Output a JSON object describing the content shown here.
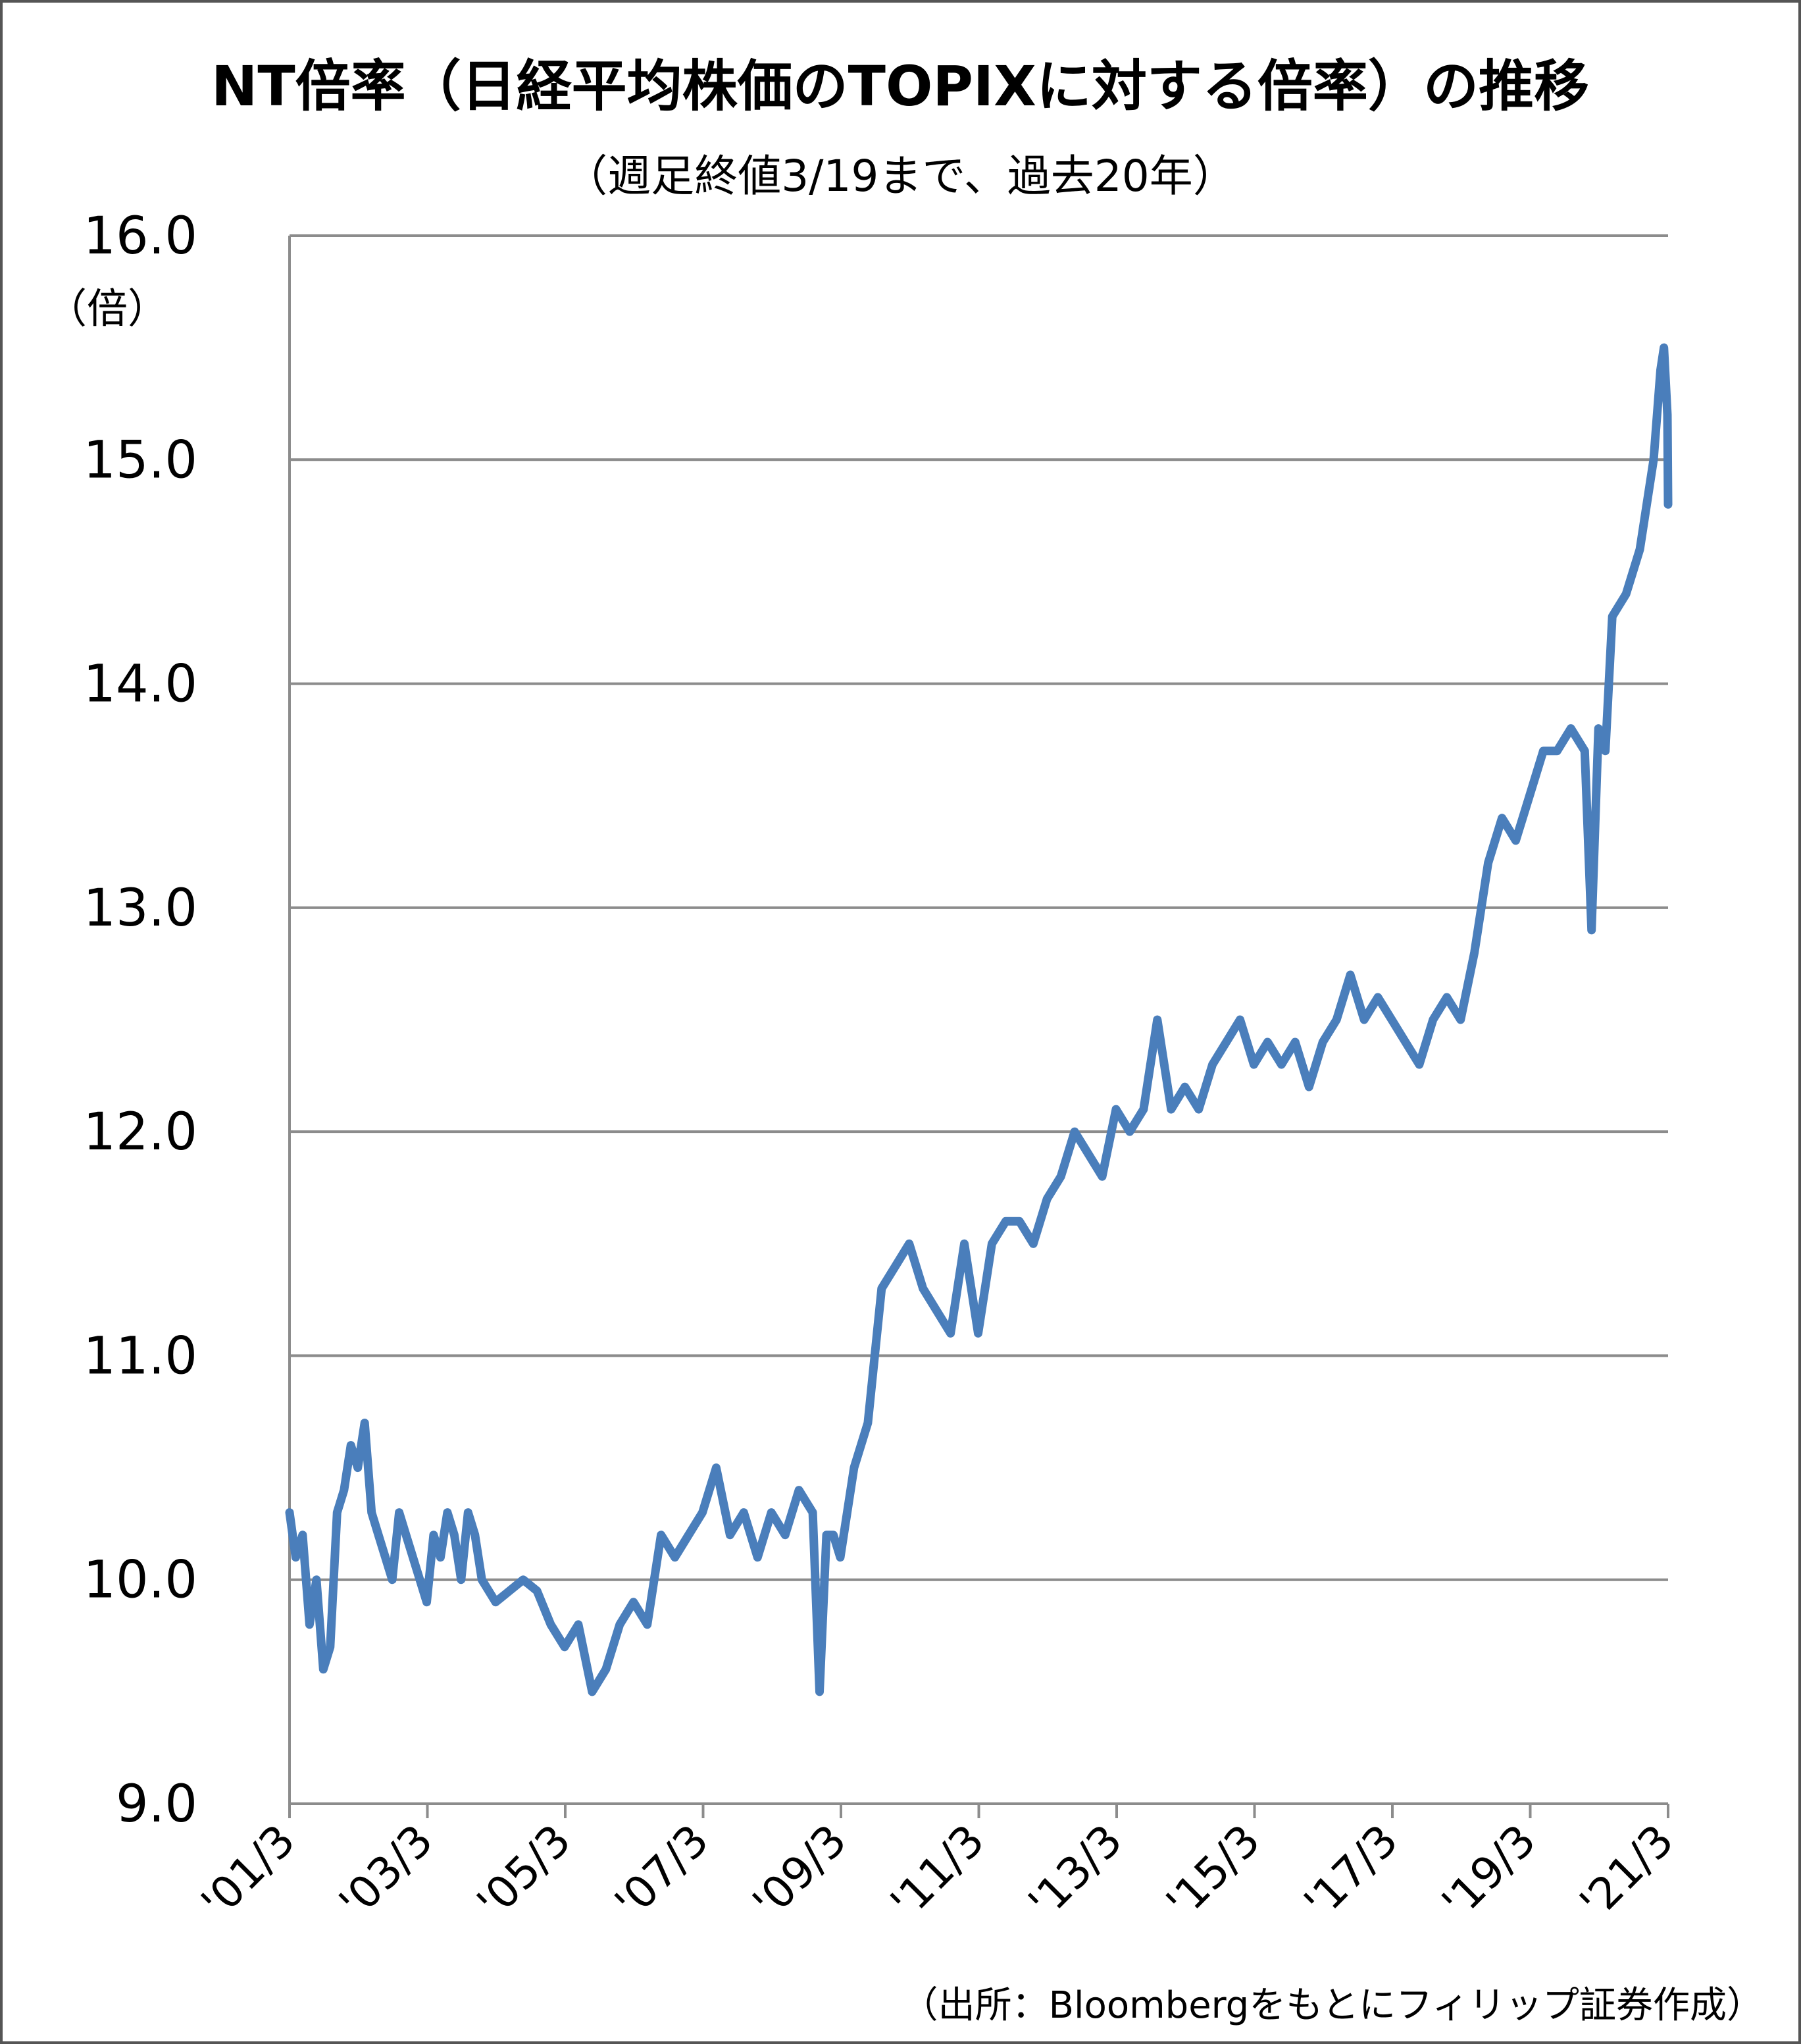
{
  "chart_data": {
    "type": "line",
    "title": "NT倍率（日経平均株価のTOPIXに対する倍率）の推移",
    "subtitle": "（週足終値3/19まで、過去20年）",
    "y_unit": "（倍）",
    "ylim": [
      9.0,
      16.0
    ],
    "y_ticks": [
      "16.0",
      "15.0",
      "14.0",
      "13.0",
      "12.0",
      "11.0",
      "10.0",
      "9.0"
    ],
    "x_tick_labels": [
      "'01/3",
      "'03/3",
      "'05/3",
      "'07/3",
      "'09/3",
      "'11/3",
      "'13/3",
      "'15/3",
      "'17/3",
      "'19/3",
      "'21/3"
    ],
    "grid": true,
    "line_color": "#4a7ebb",
    "grid_color": "#8c8c8c",
    "source": "（出所：Bloombergをもとにフィリップ証券作成）",
    "series": [
      {
        "x": [
          2001.21,
          2001.3,
          2001.4,
          2001.5,
          2001.6,
          2001.7,
          2001.8,
          2001.9,
          2002.0,
          2002.1,
          2002.2,
          2002.3,
          2002.4,
          2002.5,
          2002.6,
          2002.7,
          2002.8,
          2002.9,
          2003.0,
          2003.1,
          2003.2,
          2003.3,
          2003.4,
          2003.5,
          2003.6,
          2003.7,
          2003.8,
          2003.9,
          2004.0,
          2004.2,
          2004.4,
          2004.6,
          2004.8,
          2005.0,
          2005.2,
          2005.4,
          2005.6,
          2005.8,
          2006.0,
          2006.2,
          2006.4,
          2006.6,
          2006.8,
          2007.0,
          2007.2,
          2007.4,
          2007.6,
          2007.8,
          2008.0,
          2008.2,
          2008.4,
          2008.6,
          2008.8,
          2008.9,
          2009.0,
          2009.1,
          2009.2,
          2009.4,
          2009.6,
          2009.8,
          2010.0,
          2010.2,
          2010.4,
          2010.6,
          2010.8,
          2011.0,
          2011.2,
          2011.4,
          2011.6,
          2011.8,
          2012.0,
          2012.2,
          2012.4,
          2012.6,
          2012.8,
          2013.0,
          2013.2,
          2013.4,
          2013.6,
          2013.8,
          2014.0,
          2014.2,
          2014.4,
          2014.6,
          2014.8,
          2015.0,
          2015.2,
          2015.4,
          2015.6,
          2015.8,
          2016.0,
          2016.2,
          2016.4,
          2016.6,
          2016.8,
          2017.0,
          2017.2,
          2017.4,
          2017.6,
          2017.8,
          2018.0,
          2018.2,
          2018.4,
          2018.6,
          2018.8,
          2019.0,
          2019.2,
          2019.4,
          2019.6,
          2019.8,
          2020.0,
          2020.1,
          2020.2,
          2020.3,
          2020.4,
          2020.6,
          2020.8,
          2021.0,
          2021.1,
          2021.15,
          2021.2,
          2021.21
        ],
        "y": [
          10.3,
          10.1,
          10.2,
          9.8,
          10.0,
          9.6,
          9.7,
          10.3,
          10.4,
          10.6,
          10.5,
          10.7,
          10.3,
          10.2,
          10.1,
          10.0,
          10.3,
          10.2,
          10.1,
          10.0,
          9.9,
          10.2,
          10.1,
          10.3,
          10.2,
          10.0,
          10.3,
          10.2,
          10.0,
          9.9,
          9.95,
          10.0,
          9.95,
          9.8,
          9.7,
          9.8,
          9.5,
          9.6,
          9.8,
          9.9,
          9.8,
          10.2,
          10.1,
          10.2,
          10.3,
          10.5,
          10.2,
          10.3,
          10.1,
          10.3,
          10.2,
          10.4,
          10.3,
          9.5,
          10.2,
          10.2,
          10.1,
          10.5,
          10.7,
          11.3,
          11.4,
          11.5,
          11.3,
          11.2,
          11.1,
          11.5,
          11.1,
          11.5,
          11.6,
          11.6,
          11.5,
          11.7,
          11.8,
          12.0,
          11.9,
          11.8,
          12.1,
          12.0,
          12.1,
          12.5,
          12.1,
          12.2,
          12.1,
          12.3,
          12.4,
          12.5,
          12.3,
          12.4,
          12.3,
          12.4,
          12.2,
          12.4,
          12.5,
          12.7,
          12.5,
          12.6,
          12.5,
          12.4,
          12.3,
          12.5,
          12.6,
          12.5,
          12.8,
          13.2,
          13.4,
          13.3,
          13.5,
          13.7,
          13.7,
          13.8,
          13.7,
          12.9,
          13.8,
          13.7,
          14.3,
          14.4,
          14.6,
          15.0,
          15.4,
          15.5,
          15.2,
          14.8
        ]
      }
    ]
  }
}
